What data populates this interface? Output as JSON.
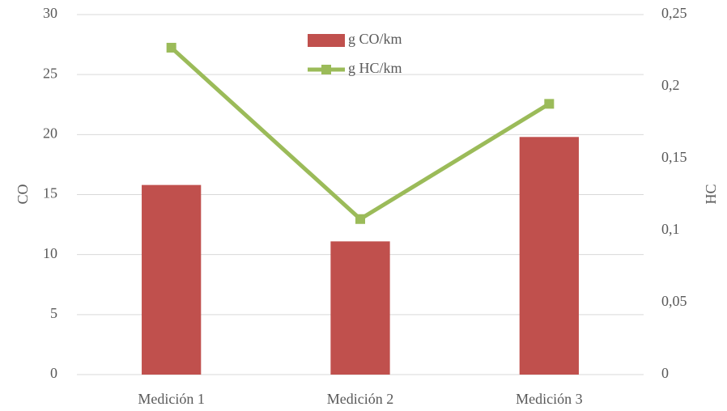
{
  "chart_data": {
    "type": "bar",
    "categories": [
      "Medición 1",
      "Medición 2",
      "Medición 3"
    ],
    "series": [
      {
        "name": "g CO/km",
        "color": "#c0504d",
        "values": [
          15.8,
          11.1,
          19.8
        ]
      },
      {
        "name": "g HC/km",
        "color": "#9bbb59",
        "type": "line",
        "axis": "y2",
        "values": [
          0.227,
          0.108,
          0.188
        ]
      }
    ],
    "y_label": "CO",
    "y2_label": "HC",
    "ylim": [
      0,
      30
    ],
    "yticks": [
      0,
      5,
      10,
      15,
      20,
      25,
      30
    ],
    "y2lim": [
      0,
      0.25
    ],
    "y2ticks": [
      {
        "value": 0,
        "label": "0"
      },
      {
        "value": 0.05,
        "label": "0,05"
      },
      {
        "value": 0.1,
        "label": "0,1"
      },
      {
        "value": 0.15,
        "label": "0,15"
      },
      {
        "value": 0.2,
        "label": "0,2"
      },
      {
        "value": 0.25,
        "label": "0,25"
      }
    ],
    "grid": true,
    "legend": "top"
  }
}
